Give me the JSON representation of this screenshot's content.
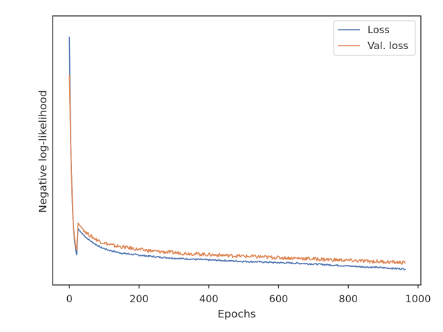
{
  "chart_data": {
    "type": "line",
    "title": "",
    "xlabel": "Epochs",
    "ylabel": "Negative log-likelihood",
    "xlim": [
      -48,
      1008
    ],
    "ylim": [
      0.0,
      1.0
    ],
    "y_ticks_shown": false,
    "x_ticks": [
      0,
      200,
      400,
      600,
      800,
      1000
    ],
    "x_tick_labels": [
      "0",
      "200",
      "400",
      "600",
      "800",
      "1000"
    ],
    "grid": false,
    "legend_position": "top-right",
    "series": [
      {
        "name": "Loss",
        "color": "#4c72b0",
        "x": [
          0,
          2,
          4,
          6,
          8,
          10,
          12,
          15,
          18,
          21,
          25,
          30,
          35,
          40,
          50,
          60,
          75,
          90,
          110,
          130,
          150,
          175,
          200,
          250,
          300,
          350,
          400,
          450,
          500,
          550,
          600,
          650,
          700,
          750,
          800,
          850,
          900,
          930,
          964
        ],
        "y": [
          0.98,
          0.74,
          0.56,
          0.44,
          0.35,
          0.28,
          0.22,
          0.17,
          0.135,
          0.115,
          0.2187,
          0.209,
          0.201,
          0.194,
          0.181,
          0.17,
          0.156,
          0.144,
          0.134,
          0.127,
          0.121,
          0.117,
          0.113,
          0.106,
          0.101,
          0.097,
          0.094,
          0.091,
          0.088,
          0.086,
          0.083,
          0.081,
          0.078,
          0.074,
          0.07,
          0.066,
          0.063,
          0.06,
          0.058
        ]
      },
      {
        "name": "Val. loss",
        "color": "#dd8452",
        "x": [
          0,
          2,
          4,
          6,
          8,
          10,
          12,
          15,
          18,
          21,
          25,
          30,
          35,
          40,
          50,
          60,
          75,
          90,
          110,
          130,
          150,
          175,
          200,
          250,
          300,
          350,
          400,
          450,
          500,
          550,
          600,
          650,
          700,
          750,
          800,
          850,
          900,
          930,
          964
        ],
        "y": [
          0.83,
          0.7,
          0.55,
          0.44,
          0.35,
          0.28,
          0.225,
          0.18,
          0.15,
          0.135,
          0.2406,
          0.231,
          0.223,
          0.215,
          0.201,
          0.19,
          0.177,
          0.166,
          0.157,
          0.15,
          0.146,
          0.141,
          0.135,
          0.128,
          0.123,
          0.119,
          0.115,
          0.112,
          0.109,
          0.106,
          0.103,
          0.101,
          0.098,
          0.095,
          0.092,
          0.089,
          0.087,
          0.085,
          0.083
        ]
      }
    ]
  }
}
